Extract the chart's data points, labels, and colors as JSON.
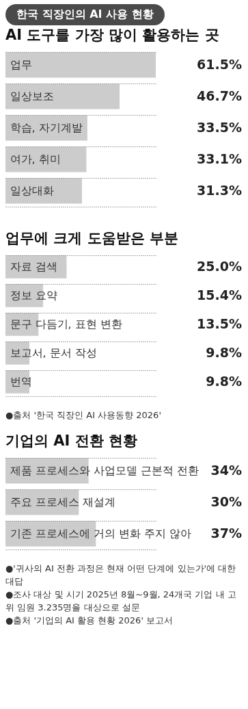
{
  "chart_data": [
    {
      "type": "bar",
      "orientation": "horizontal",
      "title": "한국 직장인의 AI 사용 현황",
      "subtitle": "AI 도구를 가장 많이 활용하는 곳",
      "categories": [
        "업무",
        "일상보조",
        "학습, 자기계발",
        "여가, 취미",
        "일상대화"
      ],
      "values": [
        61.5,
        46.7,
        33.5,
        33.1,
        31.3
      ],
      "value_labels": [
        "61.5%",
        "46.7%",
        "33.5%",
        "33.1%",
        "31.3%"
      ],
      "color": "#cccccc",
      "grid": "y"
    },
    {
      "type": "bar",
      "orientation": "horizontal",
      "title": "업무에 크게 도움받은 부분",
      "categories": [
        "자료 검색",
        "정보 요약",
        "문구 다듬기, 표현 변환",
        "보고서, 문서 작성",
        "번역"
      ],
      "values": [
        25.0,
        15.4,
        13.5,
        9.8,
        9.8
      ],
      "value_labels": [
        "25.0%",
        "15.4%",
        "13.5%",
        "9.8%",
        "9.8%"
      ],
      "color": "#cccccc",
      "grid": "y",
      "annotations": [
        "●출처 '한국 직장인 AI 사용동향 2026'"
      ]
    },
    {
      "type": "bar",
      "orientation": "horizontal",
      "title": "기업의 AI 전환 현황",
      "categories": [
        "제품 프로세스와 사업모델 근본적 전환",
        "주요 프로세스 재설계",
        "기존 프로세스에 거의 변화 주지 않아"
      ],
      "values": [
        34,
        30,
        37
      ],
      "value_labels": [
        "34%",
        "30%",
        "37%"
      ],
      "color": "#cccccc",
      "grid": "y",
      "annotations": [
        "●'귀사의 AI 전환 과정은 현재 어떤 단계에 있는가'에 대한 대답",
        "●조사 대상 및 시기 2025년 8월~9월, 24개국 기업 내 고위 임원 3.235명을 대상으로 설문",
        "●출처 '기업의 AI 활용 현황 2026' 보고서"
      ]
    }
  ]
}
